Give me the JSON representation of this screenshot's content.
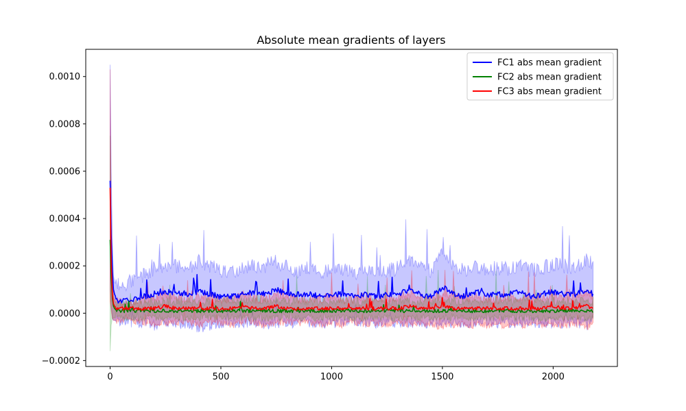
{
  "chart_data": {
    "type": "line",
    "title": "Absolute mean gradients of layers",
    "xlabel": "",
    "ylabel": "",
    "xlim": [
      -110,
      2290
    ],
    "ylim": [
      -0.000225,
      0.001115
    ],
    "x_ticks": [
      0,
      500,
      1000,
      1500,
      2000
    ],
    "x_tick_labels": [
      "0",
      "500",
      "1000",
      "1500",
      "2000"
    ],
    "y_ticks": [
      -0.0002,
      0.0,
      0.0002,
      0.0004,
      0.0006,
      0.0008,
      0.001
    ],
    "y_tick_labels": [
      "−0.0002",
      "0.0000",
      "0.0002",
      "0.0004",
      "0.0006",
      "0.0008",
      "0.0010"
    ],
    "grid": false,
    "legend_position": "top-right",
    "series": [
      {
        "name": "FC1 abs mean gradient",
        "color": "#0000ff",
        "band_color": "#0000ff",
        "x": [
          0,
          5,
          10,
          15,
          20,
          30,
          40,
          60,
          80,
          100,
          150,
          200,
          250,
          300,
          350,
          400,
          450,
          500,
          550,
          600,
          650,
          700,
          750,
          800,
          850,
          900,
          950,
          1000,
          1050,
          1100,
          1150,
          1200,
          1250,
          1300,
          1350,
          1400,
          1450,
          1500,
          1550,
          1600,
          1650,
          1700,
          1750,
          1800,
          1850,
          1900,
          1950,
          2000,
          2050,
          2100,
          2150,
          2180
        ],
        "mean": [
          0.00056,
          0.00033,
          0.00018,
          0.0001,
          8e-05,
          6e-05,
          5e-05,
          5.5e-05,
          6e-05,
          6e-05,
          7e-05,
          8e-05,
          9e-05,
          9e-05,
          8e-05,
          9e-05,
          8e-05,
          7e-05,
          7e-05,
          8e-05,
          9e-05,
          8e-05,
          0.0001,
          8e-05,
          8e-05,
          8e-05,
          7e-05,
          8e-05,
          8e-05,
          7e-05,
          8e-05,
          7e-05,
          8e-05,
          8e-05,
          0.0001,
          8e-05,
          7e-05,
          0.00011,
          8e-05,
          7e-05,
          9e-05,
          8e-05,
          8e-05,
          8e-05,
          9e-05,
          7e-05,
          8e-05,
          9e-05,
          8e-05,
          8e-05,
          0.0001,
          8e-05
        ],
        "upper": [
          0.00105,
          0.0006,
          0.0003,
          0.00016,
          0.00013,
          0.00012,
          0.00012,
          0.00012,
          0.00013,
          0.00014,
          0.00016,
          0.00019,
          0.0002,
          0.0002,
          0.00019,
          0.00022,
          0.0002,
          0.00018,
          0.00018,
          0.00019,
          0.0002,
          0.0002,
          0.00022,
          0.00019,
          0.00018,
          0.00019,
          0.00017,
          0.00018,
          0.00019,
          0.00017,
          0.00018,
          0.00017,
          0.00018,
          0.00019,
          0.00022,
          0.00019,
          0.00018,
          0.00026,
          0.00019,
          0.00018,
          0.0002,
          0.00019,
          0.00019,
          0.00019,
          0.0002,
          0.00018,
          0.00019,
          0.00021,
          0.0002,
          0.00019,
          0.00023,
          0.00021
        ],
        "lower": [
          0.0001,
          3e-05,
          -2e-05,
          -3e-05,
          -3e-05,
          -3e-05,
          -3e-05,
          -3e-05,
          -3e-05,
          -4e-05,
          -4e-05,
          -5e-05,
          -4e-05,
          -4e-05,
          -5e-05,
          -6e-05,
          -5e-05,
          -4e-05,
          -4e-05,
          -4e-05,
          -4e-05,
          -5e-05,
          -4e-05,
          -4e-05,
          -4e-05,
          -4e-05,
          -4e-05,
          -4e-05,
          -4e-05,
          -3e-05,
          -4e-05,
          -4e-05,
          -4e-05,
          -4e-05,
          -4e-05,
          -4e-05,
          -4e-05,
          -4e-05,
          -4e-05,
          -4e-05,
          -4e-05,
          -4e-05,
          -4e-05,
          -4e-05,
          -4e-05,
          -4e-05,
          -4e-05,
          -4e-05,
          -4e-05,
          -4e-05,
          -5e-05,
          -4e-05
        ]
      },
      {
        "name": "FC2 abs mean gradient",
        "color": "#008000",
        "band_color": "#2ca02c",
        "x": [
          0,
          5,
          10,
          15,
          20,
          30,
          40,
          60,
          80,
          100,
          150,
          200,
          250,
          300,
          350,
          400,
          450,
          500,
          550,
          600,
          650,
          700,
          750,
          800,
          850,
          900,
          950,
          1000,
          1050,
          1100,
          1150,
          1200,
          1250,
          1300,
          1350,
          1400,
          1450,
          1500,
          1550,
          1600,
          1650,
          1700,
          1750,
          1800,
          1850,
          1900,
          1950,
          2000,
          2050,
          2100,
          2150,
          2180
        ],
        "mean": [
          0.00031,
          0.00015,
          6e-05,
          3e-05,
          2e-05,
          1e-05,
          1e-05,
          1e-05,
          1e-05,
          1e-05,
          1e-05,
          1e-05,
          1e-05,
          1e-05,
          1e-05,
          1e-05,
          1e-05,
          1e-05,
          1e-05,
          1e-05,
          1e-05,
          1e-05,
          1e-05,
          1e-05,
          1e-05,
          1e-05,
          1e-05,
          1e-05,
          1e-05,
          1e-05,
          1e-05,
          1e-05,
          1e-05,
          1e-05,
          1e-05,
          1e-05,
          1e-05,
          1e-05,
          1e-05,
          1e-05,
          1e-05,
          1e-05,
          1e-05,
          1e-05,
          1e-05,
          1e-05,
          1e-05,
          1e-05,
          1e-05,
          1e-05,
          1e-05,
          1e-05
        ],
        "upper": [
          0.00075,
          0.0003,
          0.00012,
          7e-05,
          5e-05,
          4e-05,
          4e-05,
          4e-05,
          4e-05,
          4e-05,
          4e-05,
          5e-05,
          5e-05,
          5e-05,
          5e-05,
          5e-05,
          5e-05,
          5e-05,
          5e-05,
          5e-05,
          5e-05,
          5e-05,
          5e-05,
          5e-05,
          5e-05,
          5e-05,
          5e-05,
          5e-05,
          5e-05,
          5e-05,
          5e-05,
          5e-05,
          5e-05,
          5e-05,
          5e-05,
          5e-05,
          5e-05,
          5e-05,
          5e-05,
          5e-05,
          5e-05,
          5e-05,
          5e-05,
          5e-05,
          5e-05,
          5e-05,
          5e-05,
          5e-05,
          5e-05,
          5e-05,
          5e-05,
          5e-05
        ],
        "lower": [
          -0.00016,
          -5e-05,
          -2e-05,
          -2e-05,
          -2e-05,
          -2e-05,
          -2e-05,
          -2e-05,
          -2e-05,
          -2e-05,
          -2e-05,
          -2e-05,
          -2e-05,
          -2e-05,
          -2e-05,
          -2e-05,
          -2e-05,
          -2e-05,
          -2e-05,
          -2e-05,
          -2e-05,
          -2e-05,
          -2e-05,
          -2e-05,
          -2e-05,
          -2e-05,
          -2e-05,
          -2e-05,
          -2e-05,
          -2e-05,
          -2e-05,
          -2e-05,
          -2e-05,
          -2e-05,
          -2e-05,
          -2e-05,
          -2e-05,
          -2e-05,
          -2e-05,
          -2e-05,
          -2e-05,
          -2e-05,
          -2e-05,
          -2e-05,
          -2e-05,
          -2e-05,
          -2e-05,
          -2e-05,
          -2e-05,
          -2e-05,
          -2e-05,
          -2e-05
        ]
      },
      {
        "name": "FC3 abs mean gradient",
        "color": "#ff0000",
        "band_color": "#ff0000",
        "x": [
          0,
          5,
          10,
          15,
          20,
          30,
          40,
          60,
          80,
          100,
          150,
          200,
          250,
          300,
          350,
          400,
          450,
          500,
          550,
          600,
          650,
          700,
          750,
          800,
          850,
          900,
          950,
          1000,
          1050,
          1100,
          1150,
          1200,
          1250,
          1300,
          1350,
          1400,
          1450,
          1500,
          1550,
          1600,
          1650,
          1700,
          1750,
          1800,
          1850,
          1900,
          1950,
          2000,
          2050,
          2100,
          2150,
          2180
        ],
        "mean": [
          0.00053,
          0.00022,
          8e-05,
          4e-05,
          3e-05,
          2e-05,
          2e-05,
          2e-05,
          2e-05,
          2e-05,
          2e-05,
          2e-05,
          3e-05,
          2e-05,
          2e-05,
          2e-05,
          2e-05,
          2e-05,
          2e-05,
          3e-05,
          2e-05,
          2e-05,
          3e-05,
          2e-05,
          2e-05,
          2e-05,
          2e-05,
          2e-05,
          2e-05,
          2e-05,
          2e-05,
          2e-05,
          2e-05,
          2e-05,
          3e-05,
          2e-05,
          2e-05,
          3e-05,
          2e-05,
          2e-05,
          2e-05,
          2e-05,
          2e-05,
          2e-05,
          2e-05,
          2e-05,
          2e-05,
          3e-05,
          2e-05,
          2e-05,
          3e-05,
          2e-05
        ],
        "upper": [
          0.00103,
          0.0004,
          0.00015,
          8e-05,
          6e-05,
          5e-05,
          5e-05,
          5e-05,
          5e-05,
          5e-05,
          6e-05,
          7e-05,
          8e-05,
          7e-05,
          6e-05,
          7e-05,
          7e-05,
          6e-05,
          6e-05,
          8e-05,
          6e-05,
          6e-05,
          8e-05,
          7e-05,
          6e-05,
          6e-05,
          6e-05,
          7e-05,
          6e-05,
          6e-05,
          7e-05,
          6e-05,
          6e-05,
          7e-05,
          8e-05,
          7e-05,
          6e-05,
          8e-05,
          7e-05,
          6e-05,
          7e-05,
          6e-05,
          6e-05,
          7e-05,
          7e-05,
          6e-05,
          7e-05,
          8e-05,
          7e-05,
          7e-05,
          9e-05,
          7e-05
        ],
        "lower": [
          5e-05,
          1e-05,
          -2e-05,
          -3e-05,
          -3e-05,
          -3e-05,
          -3e-05,
          -3e-05,
          -3e-05,
          -3e-05,
          -4e-05,
          -5e-05,
          -4e-05,
          -4e-05,
          -4e-05,
          -5e-05,
          -4e-05,
          -4e-05,
          -5e-05,
          -4e-05,
          -4e-05,
          -5e-05,
          -4e-05,
          -4e-05,
          -4e-05,
          -4e-05,
          -5e-05,
          -4e-05,
          -5e-05,
          -4e-05,
          -5e-05,
          -4e-05,
          -5e-05,
          -4e-05,
          -5e-05,
          -4e-05,
          -5e-05,
          -6e-05,
          -5e-05,
          -5e-05,
          -5e-05,
          -5e-05,
          -5e-05,
          -5e-05,
          -5e-05,
          -5e-05,
          -5e-05,
          -5e-05,
          -5e-05,
          -5e-05,
          -6e-05,
          -5e-05
        ]
      }
    ]
  }
}
